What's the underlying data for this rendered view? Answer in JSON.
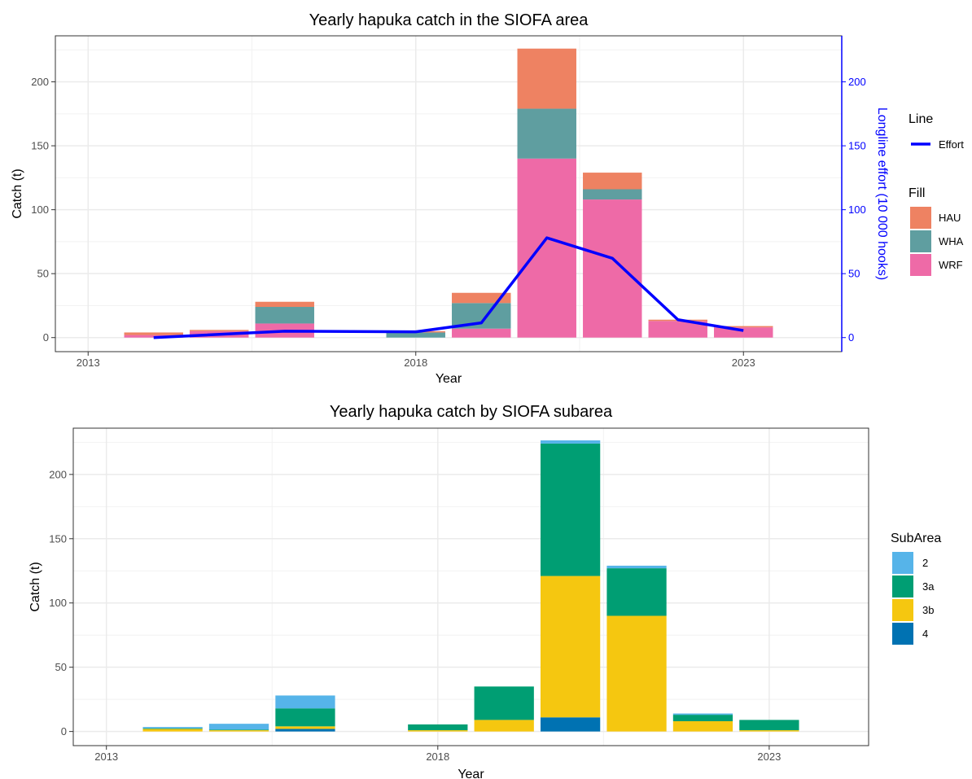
{
  "chart_data": [
    {
      "type": "bar",
      "stacked": true,
      "title": "Yearly hapuka catch in the SIOFA area",
      "xlabel": "Year",
      "ylabel": "Catch (t)",
      "ylabel_right": "Longline effort (10 000 hooks)",
      "xlim": [
        2012.5,
        2024.5
      ],
      "ylim": [
        -11,
        236
      ],
      "x_ticks": [
        2013,
        2018,
        2023
      ],
      "y_ticks": [
        0,
        50,
        100,
        150,
        200
      ],
      "y_ticks_right": [
        0,
        50,
        100,
        150,
        200
      ],
      "right_axis_color": "#0000FF",
      "grid": true,
      "x": [
        2014,
        2015,
        2016,
        2018,
        2019,
        2020,
        2021,
        2022,
        2023
      ],
      "series": [
        {
          "name": "WRF",
          "color": "#EE6AA7",
          "values": [
            2,
            5,
            11,
            0,
            7,
            140,
            108,
            13,
            8
          ]
        },
        {
          "name": "WHA",
          "color": "#5F9EA0",
          "values": [
            0,
            0,
            13,
            4,
            20,
            39,
            8,
            0,
            0
          ]
        },
        {
          "name": "HAU",
          "color": "#EE8262",
          "values": [
            2,
            1,
            4,
            1,
            8,
            47,
            13,
            1,
            1
          ]
        }
      ],
      "line": {
        "name": "Effort",
        "color": "#0000FF",
        "x": [
          2014,
          2016,
          2018,
          2019,
          2020,
          2021,
          2022,
          2023
        ],
        "values": [
          0,
          5,
          4.5,
          11.5,
          78,
          62,
          14,
          5.5
        ]
      },
      "legend": {
        "position": "right",
        "line_title": "Line",
        "fill_title": "Fill",
        "fill_order": [
          "HAU",
          "WHA",
          "WRF"
        ]
      }
    },
    {
      "type": "bar",
      "stacked": true,
      "title": "Yearly hapuka catch by SIOFA subarea",
      "xlabel": "Year",
      "ylabel": "Catch (t)",
      "xlim": [
        2012.5,
        2024.5
      ],
      "ylim": [
        -11,
        236
      ],
      "x_ticks": [
        2013,
        2018,
        2023
      ],
      "y_ticks": [
        0,
        50,
        100,
        150,
        200
      ],
      "grid": true,
      "x": [
        2014,
        2015,
        2016,
        2018,
        2019,
        2020,
        2021,
        2022,
        2023
      ],
      "series": [
        {
          "name": "4",
          "color": "#0072B2",
          "values": [
            0,
            0,
            2,
            0,
            0,
            11,
            0,
            0,
            0
          ]
        },
        {
          "name": "3b",
          "color": "#F5C710",
          "values": [
            2,
            1,
            2,
            1,
            9,
            110,
            90,
            8,
            1
          ]
        },
        {
          "name": "3a",
          "color": "#009E73",
          "values": [
            0.5,
            0.5,
            14,
            4.5,
            26,
            103,
            37,
            5,
            8
          ]
        },
        {
          "name": "2",
          "color": "#56B4E9",
          "values": [
            1,
            4.5,
            10,
            0,
            0,
            2.5,
            2,
            1,
            0
          ]
        }
      ],
      "legend": {
        "position": "right",
        "fill_title": "SubArea",
        "fill_order": [
          "2",
          "3a",
          "3b",
          "4"
        ]
      }
    }
  ]
}
